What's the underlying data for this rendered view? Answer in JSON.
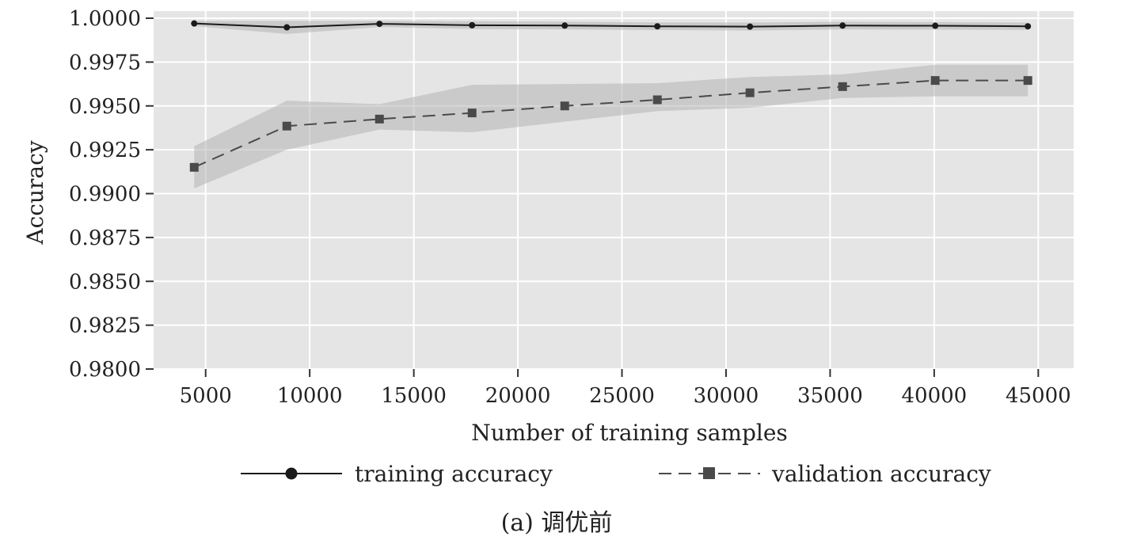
{
  "chart_data": {
    "type": "line",
    "xlabel": "Number of training samples",
    "ylabel": "Accuracy",
    "xlim": [
      2500,
      46700
    ],
    "ylim": [
      0.98,
      1.0
    ],
    "x_ticks": [
      5000,
      10000,
      15000,
      20000,
      25000,
      30000,
      35000,
      40000,
      45000
    ],
    "y_ticks": [
      0.98,
      0.9825,
      0.985,
      0.9875,
      0.99,
      0.9925,
      0.995,
      0.9975,
      1.0
    ],
    "y_tick_labels": [
      "0.9800",
      "0.9825",
      "0.9850",
      "0.9875",
      "0.9900",
      "0.9925",
      "0.9950",
      "0.9975",
      "1.0000"
    ],
    "x_tick_labels": [
      "5000",
      "10000",
      "15000",
      "20000",
      "25000",
      "30000",
      "35000",
      "40000",
      "45000"
    ],
    "x": [
      4450,
      8900,
      13350,
      17800,
      22250,
      26700,
      31150,
      35600,
      40050,
      44500
    ],
    "grid": true,
    "legend_position": "bottom",
    "series": [
      {
        "name": "training accuracy",
        "style": "solid",
        "marker": "circle",
        "color": "#1a1a1a",
        "values": [
          0.9997,
          0.99948,
          0.99968,
          0.9996,
          0.99958,
          0.99954,
          0.99952,
          0.99958,
          0.99957,
          0.99954
        ],
        "band_upper": [
          0.99985,
          0.99985,
          0.99985,
          0.99983,
          0.9998,
          0.99976,
          0.99975,
          0.9998,
          0.99978,
          0.99975
        ],
        "band_lower": [
          0.99955,
          0.9991,
          0.9995,
          0.99938,
          0.99936,
          0.99932,
          0.9993,
          0.99936,
          0.99935,
          0.99933
        ]
      },
      {
        "name": "validation accuracy",
        "style": "dashed",
        "marker": "square",
        "color": "#4a4a4a",
        "values": [
          0.9915,
          0.99385,
          0.99425,
          0.9946,
          0.995,
          0.99535,
          0.99575,
          0.9961,
          0.99645,
          0.99645
        ],
        "band_upper": [
          0.9927,
          0.9953,
          0.9951,
          0.9962,
          0.99625,
          0.9963,
          0.99665,
          0.9968,
          0.99735,
          0.99735
        ],
        "band_lower": [
          0.9903,
          0.9925,
          0.99365,
          0.9935,
          0.9941,
          0.9947,
          0.9949,
          0.99545,
          0.99555,
          0.99555
        ]
      }
    ]
  },
  "caption": "(a) 调优前"
}
